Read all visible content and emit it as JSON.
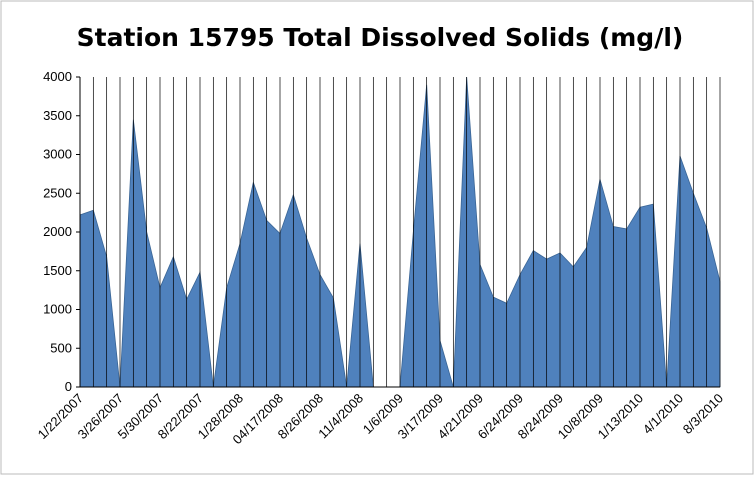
{
  "chart_data": {
    "type": "area",
    "title": "Station 15795 Total Dissolved Solids (mg/l)",
    "categories": [
      "1/22/2007",
      null,
      null,
      "3/26/2007",
      null,
      null,
      "5/30/2007",
      null,
      null,
      "8/22/2007",
      null,
      null,
      "1/28/2008",
      null,
      null,
      "04/17/2008",
      null,
      null,
      "8/26/2008",
      null,
      null,
      "11/4/2008",
      null,
      null,
      "1/6/2009",
      null,
      null,
      "3/17/2009",
      null,
      null,
      "4/21/2009",
      null,
      null,
      "6/24/2009",
      null,
      null,
      "8/24/2009",
      null,
      null,
      "10/8/2009",
      null,
      null,
      "1/13/2010",
      null,
      null,
      "4/1/2010",
      null,
      null,
      "8/3/2010"
    ],
    "values": [
      2220,
      2280,
      1680,
      0,
      3450,
      2000,
      1280,
      1680,
      1130,
      1480,
      0,
      1280,
      1850,
      2640,
      2150,
      1980,
      2480,
      1920,
      1450,
      1150,
      0,
      1850,
      0,
      0,
      0,
      2000,
      3900,
      600,
      0,
      4000,
      1580,
      1160,
      1080,
      1450,
      1760,
      1650,
      1730,
      1550,
      1800,
      2680,
      2070,
      2040,
      2320,
      2360,
      0,
      2980,
      2500,
      2050,
      1360
    ],
    "color": "#4f81bd",
    "ylim": [
      0,
      4000
    ],
    "yticks": [
      0,
      500,
      1000,
      1500,
      2000,
      2500,
      3000,
      3500,
      4000
    ],
    "grid": true
  }
}
